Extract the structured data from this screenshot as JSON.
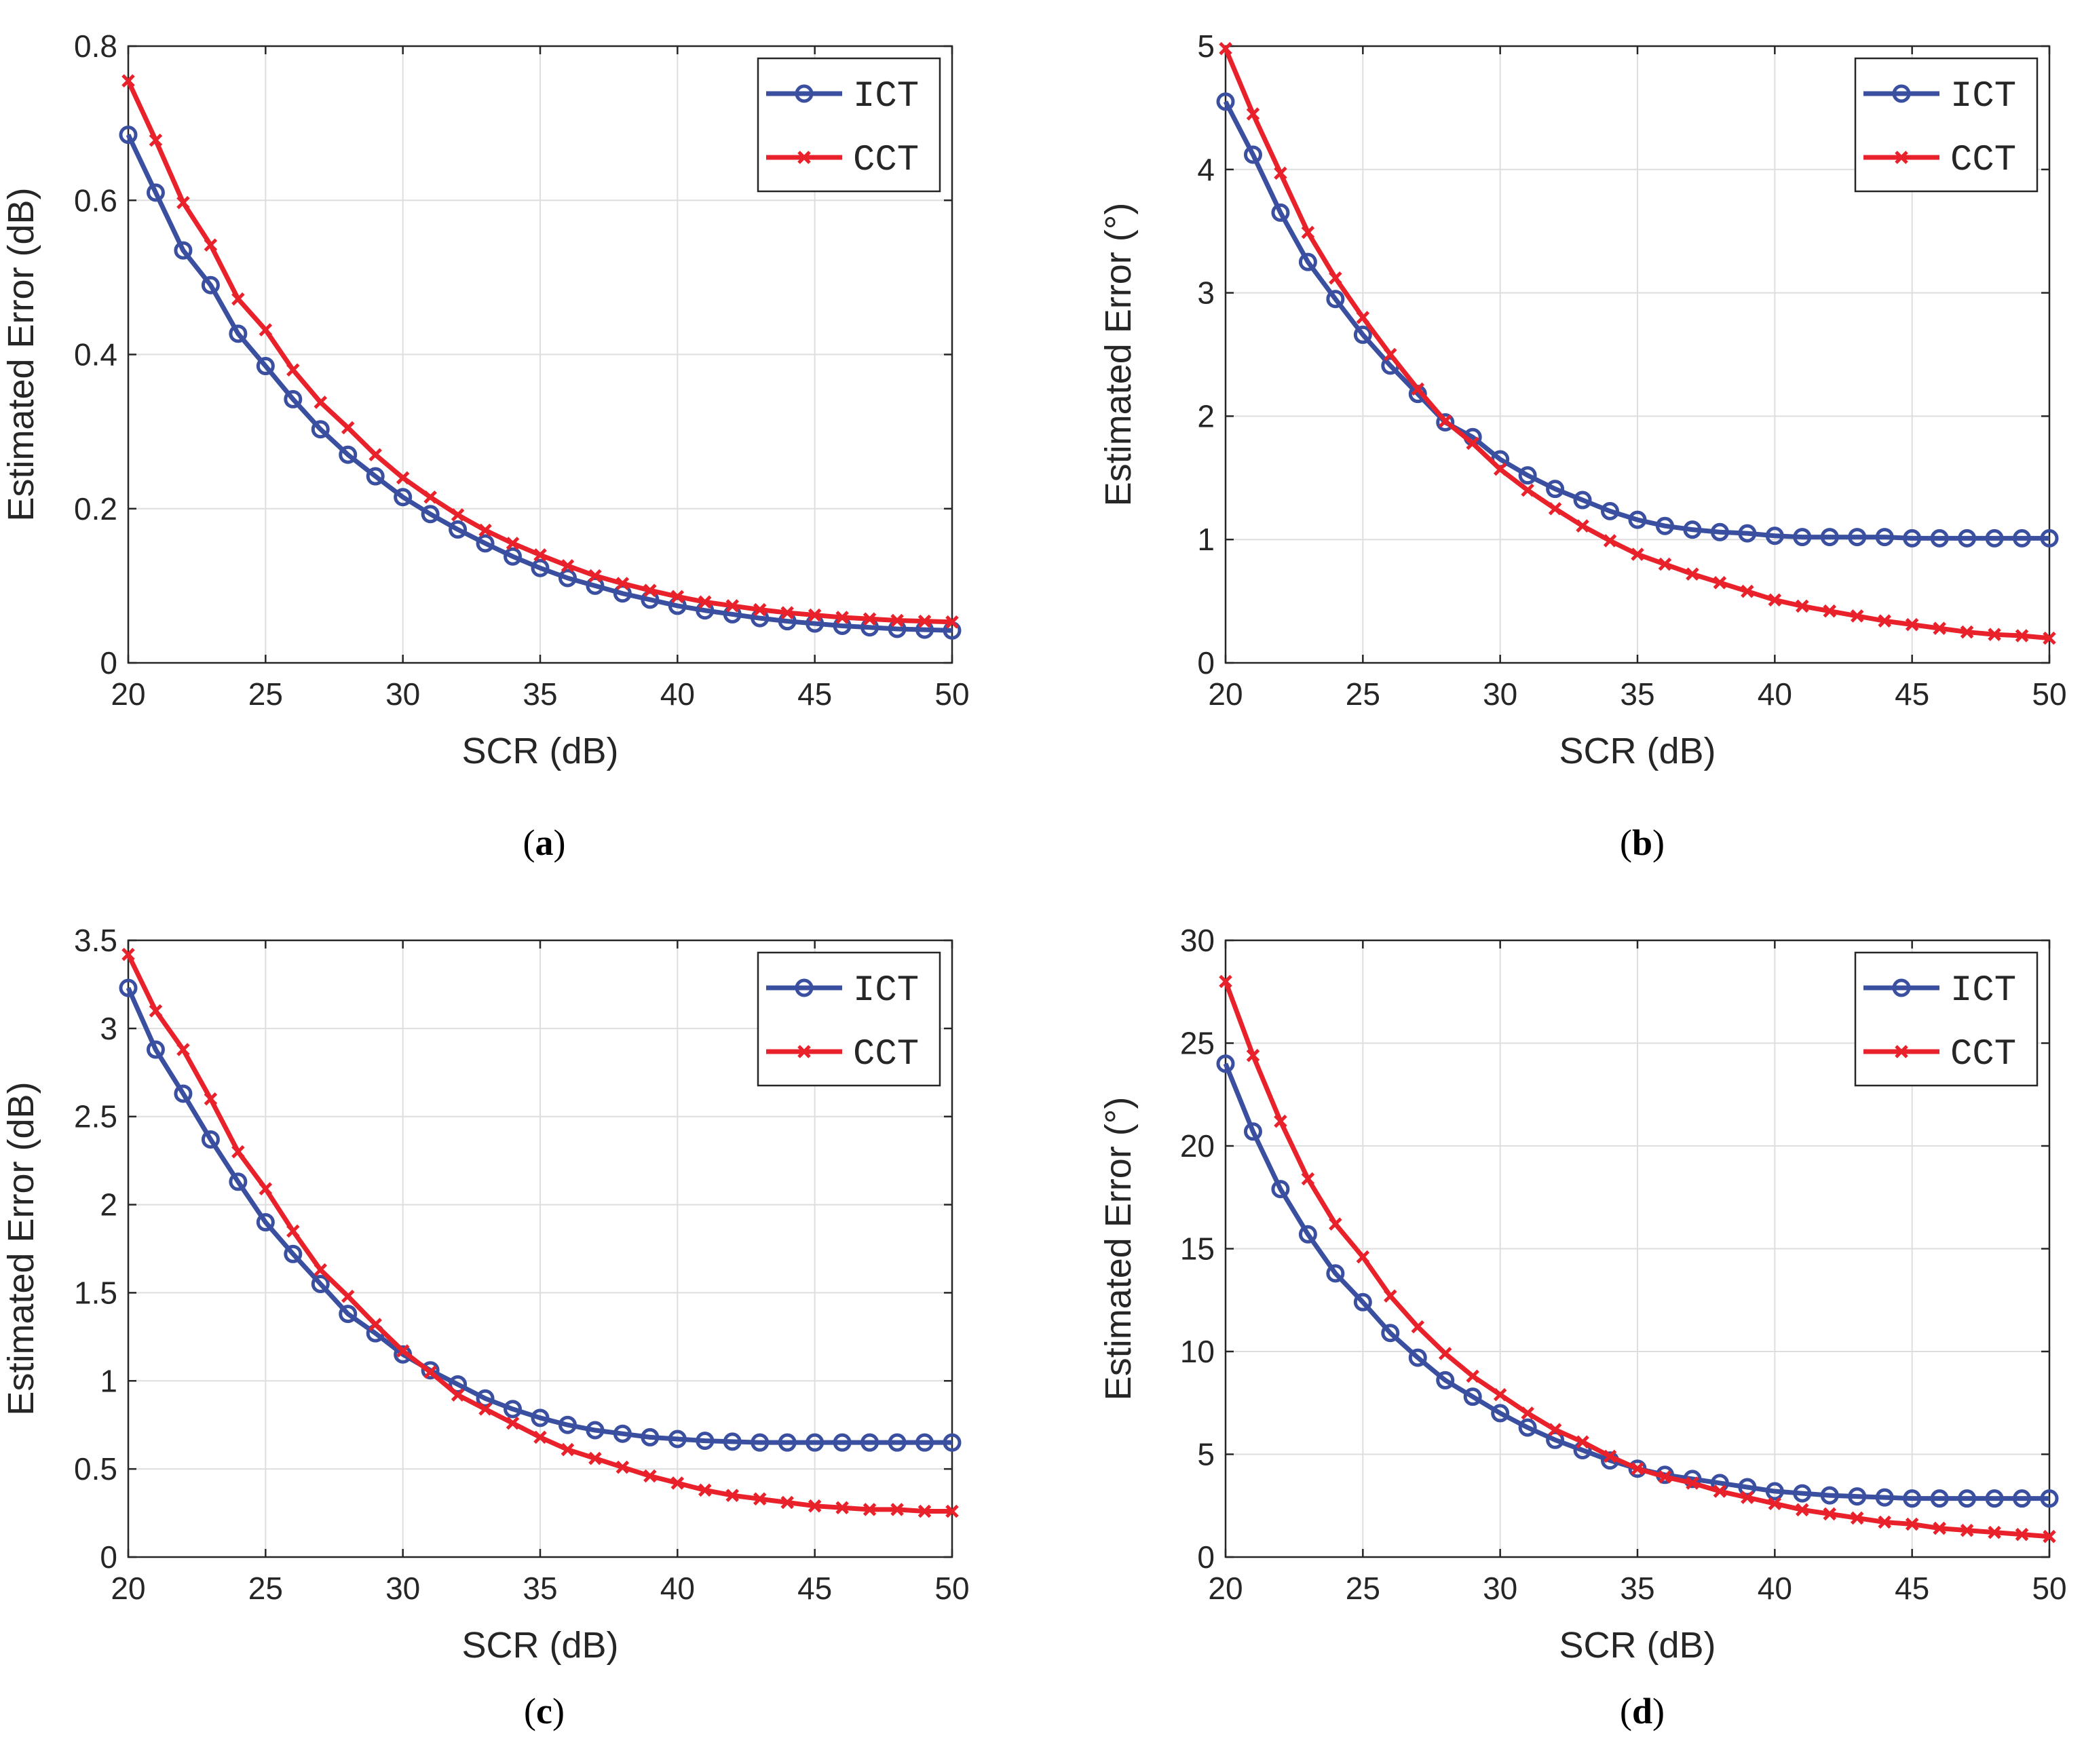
{
  "colors": {
    "ICT": "#3a4fa0",
    "CCT": "#e8212b",
    "axis": "#262626",
    "grid": "#dedede"
  },
  "chart_data": [
    {
      "panel": "(a)",
      "type": "line",
      "xlabel": "SCR (dB)",
      "ylabel": "Estimated Error (dB)",
      "xlim": [
        20,
        50
      ],
      "ylim": [
        0,
        0.8
      ],
      "xticks": [
        20,
        25,
        30,
        35,
        40,
        45,
        50
      ],
      "yticks": [
        0,
        0.2,
        0.4,
        0.6,
        0.8
      ],
      "ytick_labels": [
        "0",
        "0.2",
        "0.4",
        "0.6",
        "0.8"
      ],
      "grid": true,
      "legend_position": "top-right",
      "x": [
        20,
        21,
        22,
        23,
        24,
        25,
        26,
        27,
        28,
        29,
        30,
        31,
        32,
        33,
        34,
        35,
        36,
        37,
        38,
        39,
        40,
        41,
        42,
        43,
        44,
        45,
        46,
        47,
        48,
        49,
        50
      ],
      "series": [
        {
          "name": "ICT",
          "marker": "circle",
          "values": [
            0.685,
            0.61,
            0.535,
            0.49,
            0.427,
            0.385,
            0.342,
            0.303,
            0.27,
            0.242,
            0.215,
            0.193,
            0.173,
            0.155,
            0.138,
            0.123,
            0.11,
            0.1,
            0.09,
            0.082,
            0.074,
            0.068,
            0.063,
            0.058,
            0.054,
            0.051,
            0.048,
            0.046,
            0.044,
            0.043,
            0.042
          ]
        },
        {
          "name": "CCT",
          "marker": "x",
          "values": [
            0.755,
            0.678,
            0.597,
            0.542,
            0.472,
            0.432,
            0.38,
            0.338,
            0.305,
            0.27,
            0.24,
            0.215,
            0.192,
            0.172,
            0.155,
            0.14,
            0.126,
            0.113,
            0.103,
            0.094,
            0.086,
            0.079,
            0.074,
            0.069,
            0.065,
            0.062,
            0.059,
            0.057,
            0.055,
            0.054,
            0.053
          ]
        }
      ]
    },
    {
      "panel": "(b)",
      "type": "line",
      "xlabel": "SCR (dB)",
      "ylabel": "Estimated Error (°)",
      "xlim": [
        20,
        50
      ],
      "ylim": [
        0,
        5
      ],
      "xticks": [
        20,
        25,
        30,
        35,
        40,
        45,
        50
      ],
      "yticks": [
        0,
        1,
        2,
        3,
        4,
        5
      ],
      "ytick_labels": [
        "0",
        "1",
        "2",
        "3",
        "4",
        "5"
      ],
      "grid": true,
      "legend_position": "top-right",
      "x": [
        20,
        21,
        22,
        23,
        24,
        25,
        26,
        27,
        28,
        29,
        30,
        31,
        32,
        33,
        34,
        35,
        36,
        37,
        38,
        39,
        40,
        41,
        42,
        43,
        44,
        45,
        46,
        47,
        48,
        49,
        50
      ],
      "series": [
        {
          "name": "ICT",
          "marker": "circle",
          "values": [
            4.55,
            4.12,
            3.65,
            3.25,
            2.95,
            2.66,
            2.41,
            2.18,
            1.95,
            1.83,
            1.65,
            1.52,
            1.41,
            1.32,
            1.23,
            1.16,
            1.11,
            1.08,
            1.06,
            1.05,
            1.03,
            1.02,
            1.02,
            1.02,
            1.02,
            1.01,
            1.01,
            1.01,
            1.01,
            1.01,
            1.01
          ]
        },
        {
          "name": "CCT",
          "marker": "x",
          "values": [
            4.98,
            4.45,
            3.97,
            3.49,
            3.12,
            2.8,
            2.5,
            2.22,
            1.96,
            1.78,
            1.57,
            1.4,
            1.25,
            1.11,
            0.99,
            0.88,
            0.8,
            0.72,
            0.65,
            0.58,
            0.51,
            0.46,
            0.42,
            0.38,
            0.34,
            0.31,
            0.28,
            0.25,
            0.23,
            0.22,
            0.2
          ]
        }
      ]
    },
    {
      "panel": "(c)",
      "type": "line",
      "xlabel": "SCR (dB)",
      "ylabel": "Estimated Error (dB)",
      "xlim": [
        20,
        50
      ],
      "ylim": [
        0,
        3.5
      ],
      "xticks": [
        20,
        25,
        30,
        35,
        40,
        45,
        50
      ],
      "yticks": [
        0,
        0.5,
        1,
        1.5,
        2,
        2.5,
        3,
        3.5
      ],
      "ytick_labels": [
        "0",
        "0.5",
        "1",
        "1.5",
        "2",
        "2.5",
        "3",
        "3.5"
      ],
      "grid": true,
      "legend_position": "top-right",
      "x": [
        20,
        21,
        22,
        23,
        24,
        25,
        26,
        27,
        28,
        29,
        30,
        31,
        32,
        33,
        34,
        35,
        36,
        37,
        38,
        39,
        40,
        41,
        42,
        43,
        44,
        45,
        46,
        47,
        48,
        49,
        50
      ],
      "series": [
        {
          "name": "ICT",
          "marker": "circle",
          "values": [
            3.23,
            2.88,
            2.63,
            2.37,
            2.13,
            1.9,
            1.72,
            1.55,
            1.38,
            1.27,
            1.15,
            1.06,
            0.98,
            0.9,
            0.84,
            0.79,
            0.75,
            0.72,
            0.7,
            0.68,
            0.67,
            0.66,
            0.655,
            0.65,
            0.65,
            0.65,
            0.65,
            0.65,
            0.65,
            0.65,
            0.65
          ]
        },
        {
          "name": "CCT",
          "marker": "x",
          "values": [
            3.42,
            3.1,
            2.88,
            2.6,
            2.3,
            2.09,
            1.85,
            1.63,
            1.48,
            1.32,
            1.17,
            1.05,
            0.92,
            0.84,
            0.76,
            0.68,
            0.61,
            0.56,
            0.51,
            0.46,
            0.42,
            0.38,
            0.35,
            0.33,
            0.31,
            0.29,
            0.28,
            0.27,
            0.27,
            0.26,
            0.26
          ]
        }
      ]
    },
    {
      "panel": "(d)",
      "type": "line",
      "xlabel": "SCR (dB)",
      "ylabel": "Estimated Error (°)",
      "xlim": [
        20,
        50
      ],
      "ylim": [
        0,
        30
      ],
      "xticks": [
        20,
        25,
        30,
        35,
        40,
        45,
        50
      ],
      "yticks": [
        0,
        5,
        10,
        15,
        20,
        25,
        30
      ],
      "ytick_labels": [
        "0",
        "5",
        "10",
        "15",
        "20",
        "25",
        "30"
      ],
      "grid": true,
      "legend_position": "top-right",
      "x": [
        20,
        21,
        22,
        23,
        24,
        25,
        26,
        27,
        28,
        29,
        30,
        31,
        32,
        33,
        34,
        35,
        36,
        37,
        38,
        39,
        40,
        41,
        42,
        43,
        44,
        45,
        46,
        47,
        48,
        49,
        50
      ],
      "series": [
        {
          "name": "ICT",
          "marker": "circle",
          "values": [
            24.0,
            20.7,
            17.9,
            15.7,
            13.8,
            12.4,
            10.9,
            9.7,
            8.6,
            7.8,
            7.0,
            6.3,
            5.7,
            5.2,
            4.7,
            4.3,
            4.0,
            3.8,
            3.6,
            3.4,
            3.2,
            3.1,
            3.0,
            2.95,
            2.9,
            2.85,
            2.85,
            2.85,
            2.85,
            2.85,
            2.85
          ]
        },
        {
          "name": "CCT",
          "marker": "x",
          "values": [
            28.0,
            24.4,
            21.2,
            18.4,
            16.2,
            14.6,
            12.7,
            11.2,
            9.9,
            8.8,
            7.9,
            7.0,
            6.2,
            5.6,
            4.9,
            4.3,
            3.9,
            3.6,
            3.2,
            2.9,
            2.6,
            2.3,
            2.1,
            1.9,
            1.7,
            1.6,
            1.4,
            1.3,
            1.2,
            1.1,
            1.0
          ]
        }
      ]
    }
  ],
  "captions": [
    "(a)",
    "(b)",
    "(c)",
    "(d)"
  ]
}
